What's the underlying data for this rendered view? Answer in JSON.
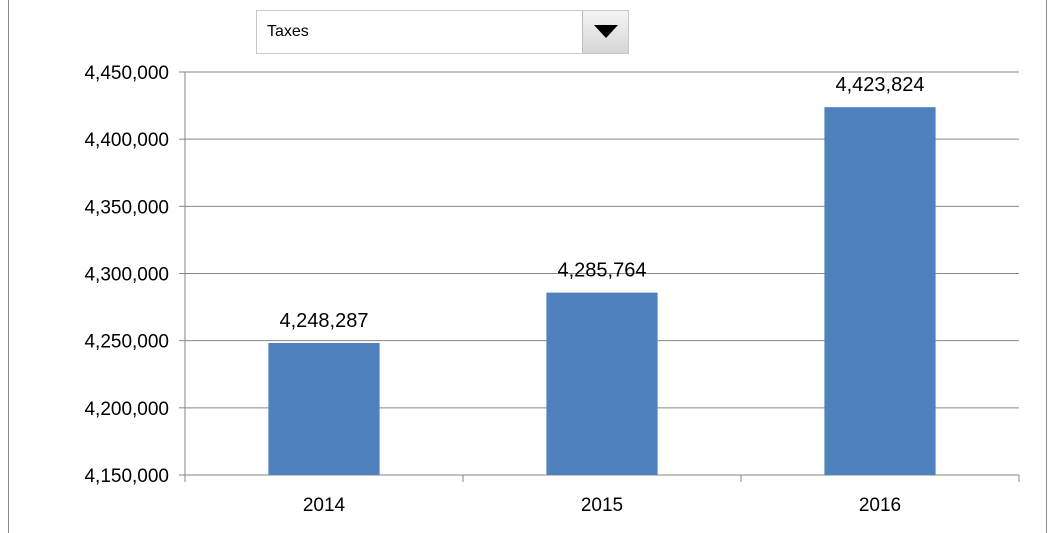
{
  "dropdown": {
    "selected": "Taxes",
    "icon": "triangle-down-icon"
  },
  "chart_data": {
    "type": "bar",
    "categories": [
      "2014",
      "2015",
      "2016"
    ],
    "values": [
      4248287,
      4285764,
      4423824
    ],
    "value_labels": [
      "4,248,287",
      "4,285,764",
      "4,423,824"
    ],
    "ylim": [
      4150000,
      4450000
    ],
    "yticks": [
      4150000,
      4200000,
      4250000,
      4300000,
      4350000,
      4400000,
      4450000
    ],
    "ytick_labels": [
      "4,150,000",
      "4,200,000",
      "4,250,000",
      "4,300,000",
      "4,350,000",
      "4,400,000",
      "4,450,000"
    ],
    "grid": true,
    "legend": "none",
    "bar_color": "#4f81bd"
  }
}
